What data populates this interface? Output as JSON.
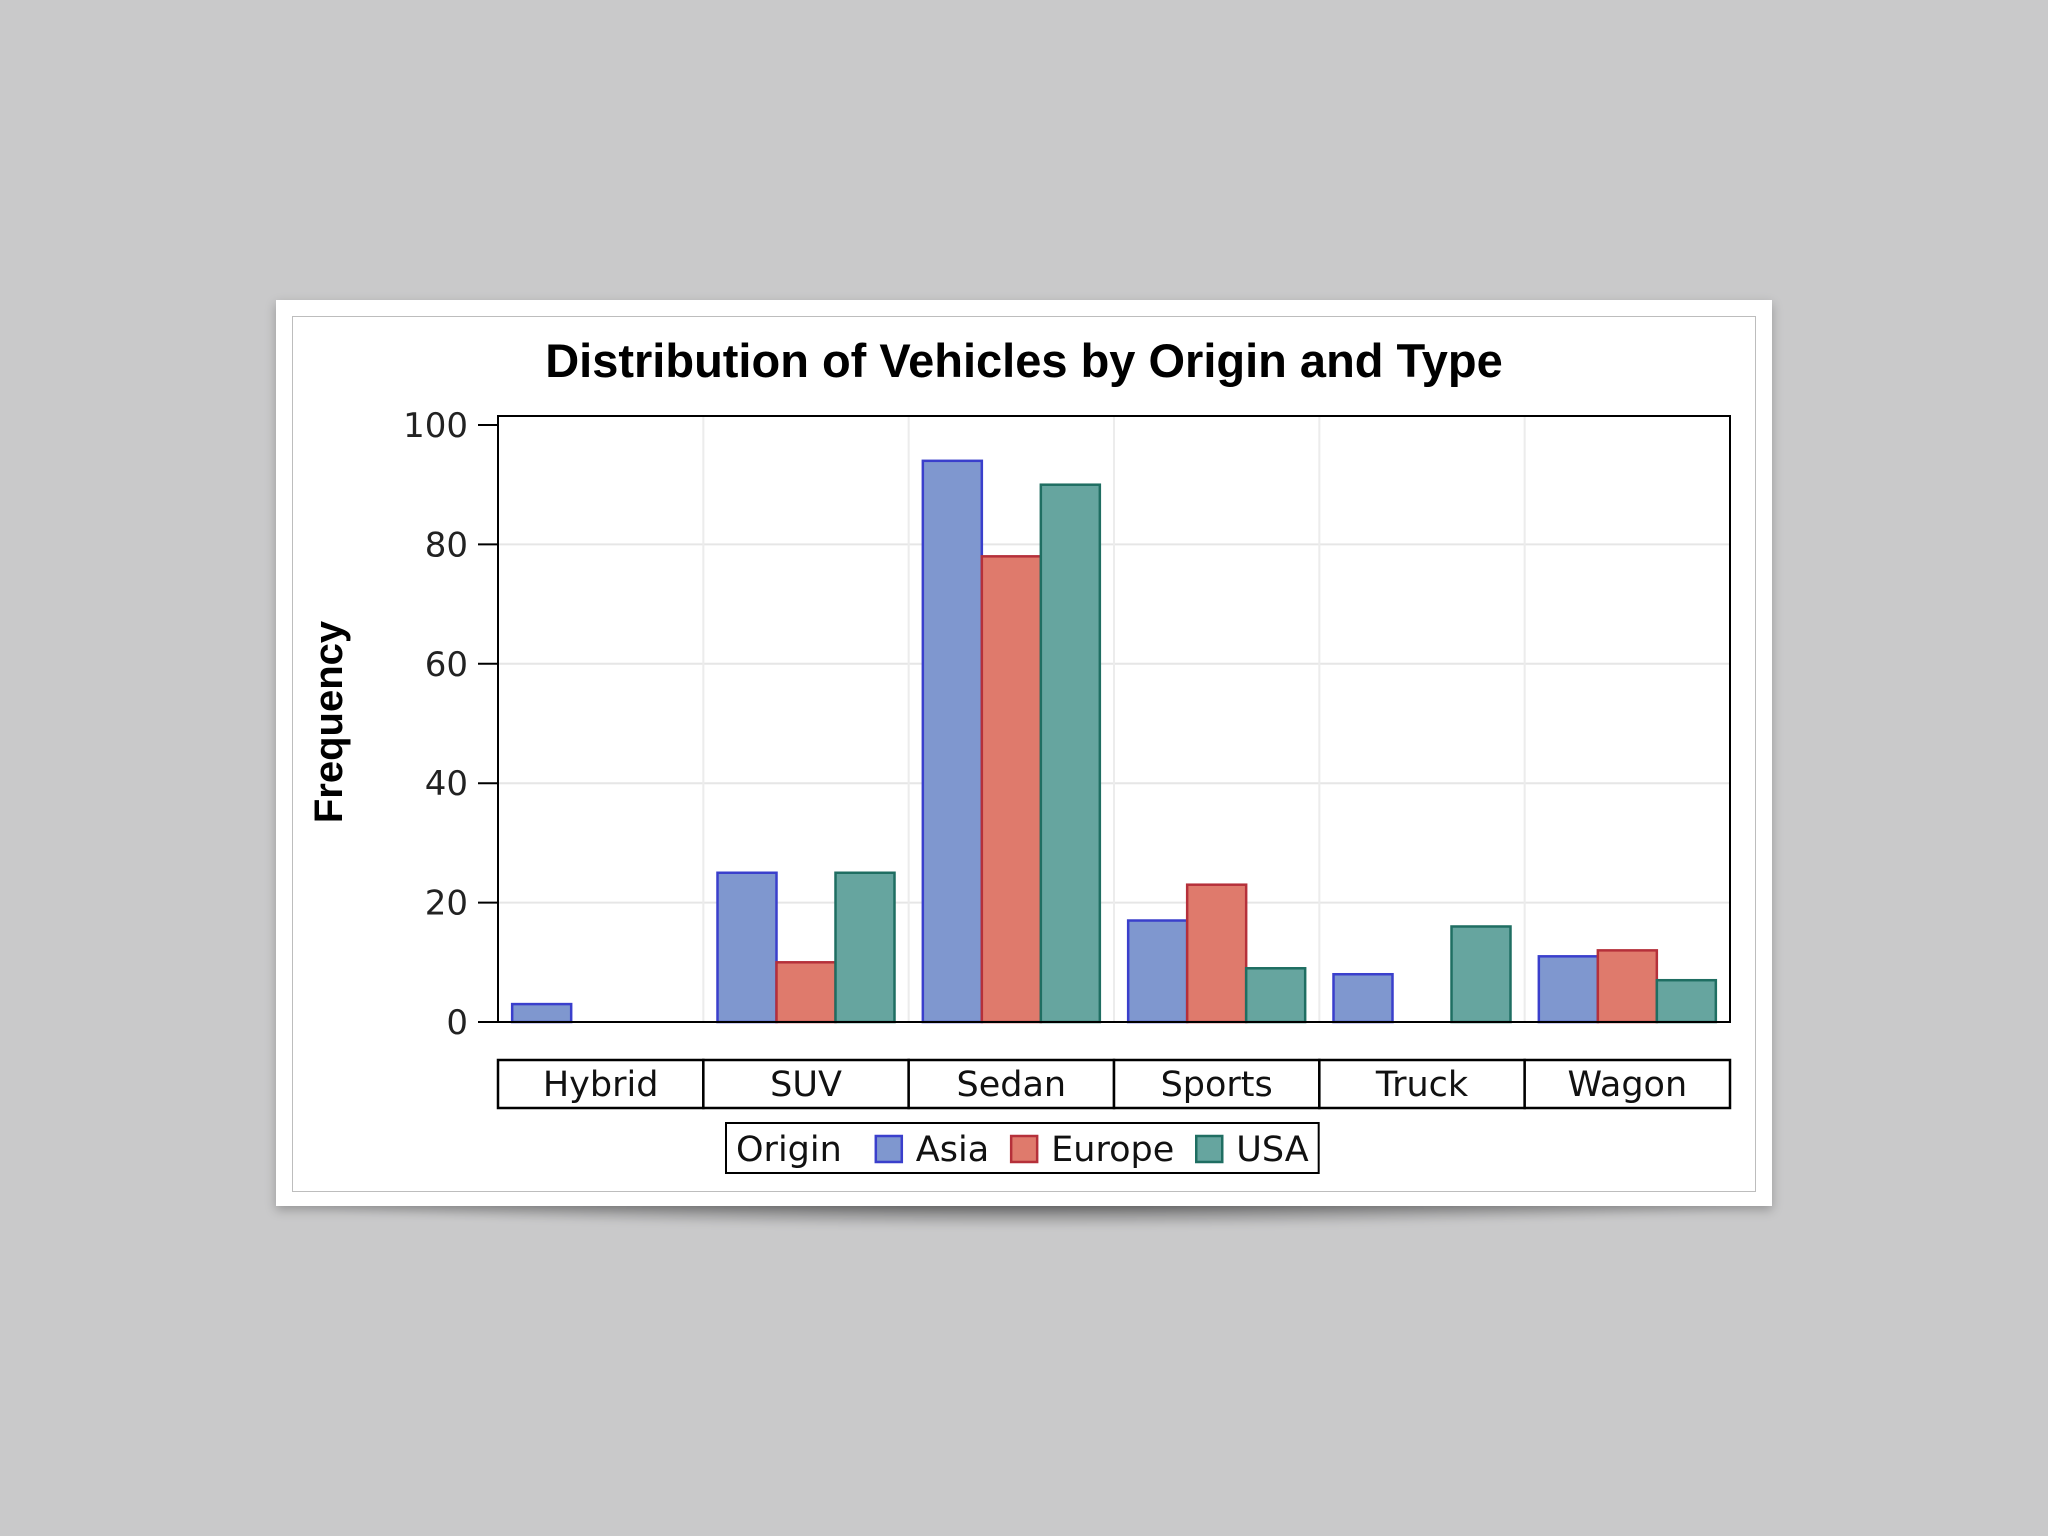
{
  "chart_data": {
    "type": "bar",
    "title": "Distribution of Vehicles by Origin and Type",
    "xlabel": "",
    "ylabel": "Frequency",
    "ylim": [
      0,
      100
    ],
    "yticks": [
      "0",
      "20",
      "40",
      "60",
      "80",
      "100"
    ],
    "grid": true,
    "categories": [
      "Hybrid",
      "SUV",
      "Sedan",
      "Sports",
      "Truck",
      "Wagon"
    ],
    "legend": {
      "title": "Origin",
      "position": "bottom"
    },
    "series": [
      {
        "name": "Asia",
        "values": [
          3,
          25,
          94,
          17,
          8,
          11
        ],
        "fill": "#7f97cf",
        "stroke": "#3a3fcc"
      },
      {
        "name": "Europe",
        "values": [
          0,
          10,
          78,
          23,
          0,
          12
        ],
        "fill": "#df7a6c",
        "stroke": "#b5303a"
      },
      {
        "name": "USA",
        "values": [
          0,
          25,
          90,
          9,
          16,
          7
        ],
        "fill": "#66a59f",
        "stroke": "#1f6e62"
      }
    ]
  }
}
